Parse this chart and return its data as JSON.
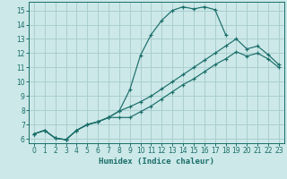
{
  "xlabel": "Humidex (Indice chaleur)",
  "bg_color": "#cce8e8",
  "grid_color": "#aacece",
  "line_color": "#1a6e6a",
  "xlim": [
    -0.5,
    23.5
  ],
  "ylim": [
    5.7,
    15.6
  ],
  "xticks": [
    0,
    1,
    2,
    3,
    4,
    5,
    6,
    7,
    8,
    9,
    10,
    11,
    12,
    13,
    14,
    15,
    16,
    17,
    18,
    19,
    20,
    21,
    22,
    23
  ],
  "yticks": [
    6,
    7,
    8,
    9,
    10,
    11,
    12,
    13,
    14,
    15
  ],
  "curve1_x": [
    0,
    1,
    2,
    3,
    4,
    5,
    6,
    7,
    8,
    9,
    10,
    11,
    12,
    13,
    14,
    15,
    16,
    17,
    18
  ],
  "curve1_y": [
    6.35,
    6.6,
    6.05,
    5.95,
    6.6,
    7.0,
    7.2,
    7.5,
    7.95,
    9.45,
    11.85,
    13.3,
    14.3,
    15.0,
    15.25,
    15.1,
    15.25,
    15.05,
    13.3
  ],
  "curve2_x": [
    0,
    1,
    2,
    3,
    4,
    5,
    6,
    7,
    8,
    9,
    10,
    11,
    12,
    13,
    14,
    15,
    16,
    17,
    18,
    19,
    20,
    21,
    22,
    23
  ],
  "curve2_y": [
    6.35,
    6.6,
    6.05,
    5.95,
    6.6,
    7.0,
    7.2,
    7.5,
    7.95,
    8.25,
    8.6,
    9.0,
    9.5,
    10.0,
    10.5,
    11.0,
    11.5,
    12.0,
    12.5,
    13.0,
    12.3,
    12.5,
    11.9,
    11.2
  ],
  "curve3_x": [
    0,
    1,
    2,
    3,
    4,
    5,
    6,
    7,
    8,
    9,
    10,
    11,
    12,
    13,
    14,
    15,
    16,
    17,
    18,
    19,
    20,
    21,
    22,
    23
  ],
  "curve3_y": [
    6.35,
    6.6,
    6.05,
    5.95,
    6.6,
    7.0,
    7.2,
    7.5,
    7.5,
    7.5,
    7.9,
    8.3,
    8.8,
    9.3,
    9.8,
    10.2,
    10.7,
    11.2,
    11.6,
    12.1,
    11.8,
    12.0,
    11.6,
    11.0
  ]
}
